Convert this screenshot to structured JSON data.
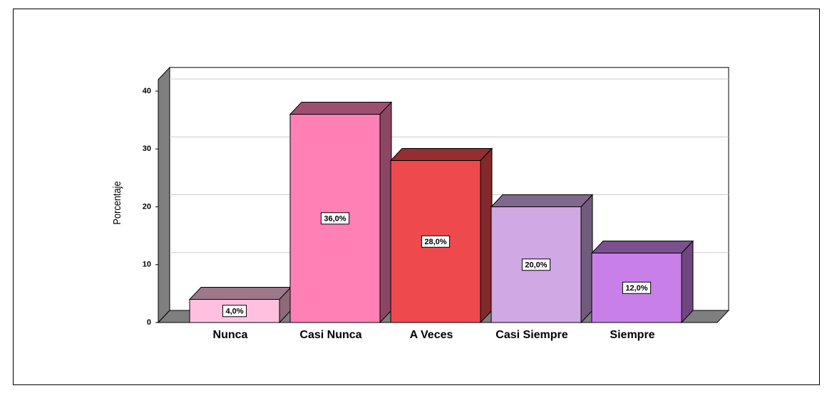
{
  "chart_data": {
    "type": "bar3d",
    "y_label": "Porcentaje",
    "categories": [
      "Nunca",
      "Casi Nunca",
      "A Veces",
      "Casi Siempre",
      "Siempre"
    ],
    "values": [
      4,
      36,
      28,
      20,
      12
    ],
    "value_labels": [
      "4,0%",
      "36,0%",
      "28,0%",
      "20,0%",
      "12,0%"
    ],
    "colors": [
      "#ffc0e0",
      "#ff80b4",
      "#ee4a4e",
      "#d0a8e4",
      "#c880e8"
    ],
    "ylim": [
      0,
      42
    ],
    "yticks": [
      0,
      10,
      20,
      30,
      40
    ],
    "grid": true
  }
}
